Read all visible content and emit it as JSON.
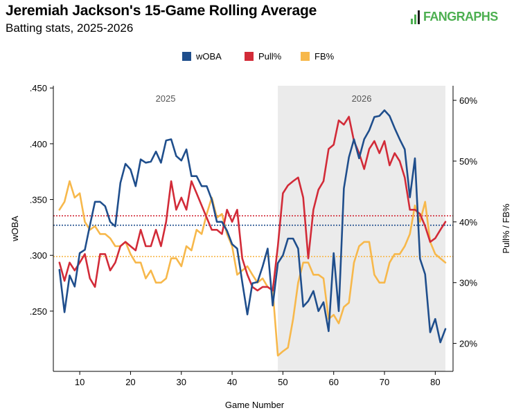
{
  "header": {
    "title": "Jeremiah Jackson's 15-Game Rolling Average",
    "subtitle": "Batting stats, 2025-2026",
    "logo_text": "FANGRAPHS",
    "logo_color": "#4caf50"
  },
  "chart_data": {
    "type": "line",
    "title": "Jeremiah Jackson's 15-Game Rolling Average",
    "subtitle": "Batting stats, 2025-2026",
    "xlabel": "Game Number",
    "ylabel_left": "wOBA",
    "ylabel_right": "Pull% / FB%",
    "xlim": [
      4.8,
      83.5
    ],
    "xticks": [
      10,
      20,
      30,
      40,
      50,
      60,
      70,
      80
    ],
    "ylim_left": [
      0.196,
      0.452
    ],
    "yticks_left": [
      0.25,
      0.3,
      0.35,
      0.4,
      0.45
    ],
    "yticks_left_labels": [
      ".250",
      ".300",
      ".350",
      ".400",
      ".450"
    ],
    "ylim_right": [
      0.154,
      0.624
    ],
    "yticks_right": [
      0.2,
      0.3,
      0.4,
      0.5,
      0.6
    ],
    "yticks_right_labels": [
      "20%",
      "30%",
      "40%",
      "50%",
      "60%"
    ],
    "legend_position": "top",
    "grid": false,
    "season_regions": [
      {
        "label": "2025",
        "start": 4.8,
        "end": 49,
        "fill": "#ffffff"
      },
      {
        "label": "2026",
        "start": 49,
        "end": 82,
        "fill": "#ebebeb"
      }
    ],
    "reference_lines": [
      {
        "series": "wOBA",
        "axis": "left",
        "value": 0.327,
        "color": "#1f4e8c"
      },
      {
        "series": "Pull%",
        "axis": "right",
        "value": 0.41,
        "color": "#d22b38"
      },
      {
        "series": "FB%",
        "axis": "right",
        "value": 0.343,
        "color": "#f7b84b"
      }
    ],
    "series": [
      {
        "name": "wOBA",
        "axis": "left",
        "color": "#1f4e8c",
        "points": [
          [
            6,
            0.287
          ],
          [
            7,
            0.249
          ],
          [
            8,
            0.282
          ],
          [
            9,
            0.272
          ],
          [
            10,
            0.302
          ],
          [
            11,
            0.305
          ],
          [
            12,
            0.327
          ],
          [
            13,
            0.348
          ],
          [
            14,
            0.348
          ],
          [
            15,
            0.344
          ],
          [
            16,
            0.33
          ],
          [
            17,
            0.326
          ],
          [
            18,
            0.365
          ],
          [
            19,
            0.382
          ],
          [
            20,
            0.377
          ],
          [
            21,
            0.362
          ],
          [
            22,
            0.386
          ],
          [
            23,
            0.383
          ],
          [
            24,
            0.384
          ],
          [
            25,
            0.393
          ],
          [
            26,
            0.383
          ],
          [
            27,
            0.403
          ],
          [
            28,
            0.404
          ],
          [
            29,
            0.389
          ],
          [
            30,
            0.385
          ],
          [
            31,
            0.395
          ],
          [
            32,
            0.371
          ],
          [
            33,
            0.371
          ],
          [
            34,
            0.362
          ],
          [
            35,
            0.362
          ],
          [
            36,
            0.35
          ],
          [
            37,
            0.33
          ],
          [
            38,
            0.33
          ],
          [
            39,
            0.322
          ],
          [
            40,
            0.31
          ],
          [
            41,
            0.306
          ],
          [
            42,
            0.276
          ],
          [
            43,
            0.247
          ],
          [
            44,
            0.275
          ],
          [
            45,
            0.276
          ],
          [
            46,
            0.29
          ],
          [
            47,
            0.306
          ],
          [
            48,
            0.255
          ],
          [
            49,
            0.293
          ],
          [
            50,
            0.3
          ],
          [
            51,
            0.315
          ],
          [
            52,
            0.315
          ],
          [
            53,
            0.306
          ],
          [
            54,
            0.254
          ],
          [
            55,
            0.259
          ],
          [
            56,
            0.268
          ],
          [
            57,
            0.25
          ],
          [
            58,
            0.258
          ],
          [
            59,
            0.232
          ],
          [
            60,
            0.302
          ],
          [
            61,
            0.25
          ],
          [
            62,
            0.36
          ],
          [
            63,
            0.388
          ],
          [
            64,
            0.404
          ],
          [
            65,
            0.387
          ],
          [
            66,
            0.404
          ],
          [
            67,
            0.412
          ],
          [
            68,
            0.424
          ],
          [
            69,
            0.425
          ],
          [
            70,
            0.43
          ],
          [
            71,
            0.425
          ],
          [
            72,
            0.414
          ],
          [
            73,
            0.404
          ],
          [
            74,
            0.395
          ],
          [
            75,
            0.352
          ],
          [
            76,
            0.387
          ],
          [
            77,
            0.297
          ],
          [
            78,
            0.283
          ],
          [
            79,
            0.231
          ],
          [
            80,
            0.243
          ],
          [
            81,
            0.222
          ],
          [
            82,
            0.234
          ]
        ]
      },
      {
        "name": "Pull%",
        "axis": "right",
        "color": "#d22b38",
        "points": [
          [
            6,
            0.333
          ],
          [
            7,
            0.303
          ],
          [
            8,
            0.333
          ],
          [
            9,
            0.32
          ],
          [
            10,
            0.333
          ],
          [
            11,
            0.347
          ],
          [
            12,
            0.307
          ],
          [
            13,
            0.293
          ],
          [
            14,
            0.347
          ],
          [
            15,
            0.347
          ],
          [
            16,
            0.32
          ],
          [
            17,
            0.333
          ],
          [
            18,
            0.36
          ],
          [
            19,
            0.367
          ],
          [
            20,
            0.36
          ],
          [
            21,
            0.353
          ],
          [
            22,
            0.387
          ],
          [
            23,
            0.36
          ],
          [
            24,
            0.36
          ],
          [
            25,
            0.387
          ],
          [
            26,
            0.36
          ],
          [
            27,
            0.4
          ],
          [
            28,
            0.467
          ],
          [
            29,
            0.42
          ],
          [
            30,
            0.44
          ],
          [
            31,
            0.42
          ],
          [
            32,
            0.467
          ],
          [
            33,
            0.447
          ],
          [
            34,
            0.427
          ],
          [
            35,
            0.407
          ],
          [
            36,
            0.387
          ],
          [
            37,
            0.387
          ],
          [
            38,
            0.38
          ],
          [
            39,
            0.42
          ],
          [
            40,
            0.4
          ],
          [
            41,
            0.42
          ],
          [
            42,
            0.34
          ],
          [
            43,
            0.313
          ],
          [
            44,
            0.293
          ],
          [
            45,
            0.287
          ],
          [
            46,
            0.293
          ],
          [
            47,
            0.293
          ],
          [
            48,
            0.287
          ],
          [
            49,
            0.36
          ],
          [
            50,
            0.447
          ],
          [
            51,
            0.46
          ],
          [
            52,
            0.467
          ],
          [
            53,
            0.473
          ],
          [
            54,
            0.44
          ],
          [
            55,
            0.34
          ],
          [
            56,
            0.42
          ],
          [
            57,
            0.453
          ],
          [
            58,
            0.467
          ],
          [
            59,
            0.52
          ],
          [
            60,
            0.527
          ],
          [
            61,
            0.567
          ],
          [
            62,
            0.56
          ],
          [
            63,
            0.573
          ],
          [
            64,
            0.533
          ],
          [
            65,
            0.513
          ],
          [
            66,
            0.487
          ],
          [
            67,
            0.52
          ],
          [
            68,
            0.533
          ],
          [
            69,
            0.513
          ],
          [
            70,
            0.533
          ],
          [
            71,
            0.493
          ],
          [
            72,
            0.513
          ],
          [
            73,
            0.5
          ],
          [
            74,
            0.473
          ],
          [
            75,
            0.42
          ],
          [
            76,
            0.42
          ],
          [
            77,
            0.413
          ],
          [
            78,
            0.393
          ],
          [
            79,
            0.367
          ],
          [
            80,
            0.373
          ],
          [
            81,
            0.387
          ],
          [
            82,
            0.4
          ]
        ]
      },
      {
        "name": "FB%",
        "axis": "right",
        "color": "#f7b84b",
        "points": [
          [
            6,
            0.42
          ],
          [
            7,
            0.433
          ],
          [
            8,
            0.467
          ],
          [
            9,
            0.44
          ],
          [
            10,
            0.447
          ],
          [
            11,
            0.4
          ],
          [
            12,
            0.387
          ],
          [
            13,
            0.393
          ],
          [
            14,
            0.38
          ],
          [
            15,
            0.38
          ],
          [
            16,
            0.373
          ],
          [
            17,
            0.36
          ],
          [
            18,
            0.36
          ],
          [
            19,
            0.367
          ],
          [
            20,
            0.347
          ],
          [
            21,
            0.333
          ],
          [
            22,
            0.333
          ],
          [
            23,
            0.307
          ],
          [
            24,
            0.32
          ],
          [
            25,
            0.3
          ],
          [
            26,
            0.3
          ],
          [
            27,
            0.307
          ],
          [
            28,
            0.34
          ],
          [
            29,
            0.34
          ],
          [
            30,
            0.327
          ],
          [
            31,
            0.36
          ],
          [
            32,
            0.353
          ],
          [
            33,
            0.387
          ],
          [
            34,
            0.38
          ],
          [
            35,
            0.413
          ],
          [
            36,
            0.44
          ],
          [
            37,
            0.407
          ],
          [
            38,
            0.413
          ],
          [
            39,
            0.38
          ],
          [
            40,
            0.36
          ],
          [
            41,
            0.313
          ],
          [
            42,
            0.32
          ],
          [
            43,
            0.327
          ],
          [
            44,
            0.313
          ],
          [
            45,
            0.3
          ],
          [
            46,
            0.307
          ],
          [
            47,
            0.293
          ],
          [
            48,
            0.287
          ],
          [
            49,
            0.18
          ],
          [
            50,
            0.187
          ],
          [
            51,
            0.193
          ],
          [
            52,
            0.24
          ],
          [
            53,
            0.3
          ],
          [
            54,
            0.333
          ],
          [
            55,
            0.333
          ],
          [
            56,
            0.313
          ],
          [
            57,
            0.313
          ],
          [
            58,
            0.307
          ],
          [
            59,
            0.24
          ],
          [
            60,
            0.247
          ],
          [
            61,
            0.233
          ],
          [
            62,
            0.26
          ],
          [
            63,
            0.267
          ],
          [
            64,
            0.333
          ],
          [
            65,
            0.36
          ],
          [
            66,
            0.367
          ],
          [
            67,
            0.367
          ],
          [
            68,
            0.313
          ],
          [
            69,
            0.3
          ],
          [
            70,
            0.3
          ],
          [
            71,
            0.333
          ],
          [
            72,
            0.347
          ],
          [
            73,
            0.347
          ],
          [
            74,
            0.36
          ],
          [
            75,
            0.38
          ],
          [
            76,
            0.427
          ],
          [
            77,
            0.4
          ],
          [
            78,
            0.433
          ],
          [
            79,
            0.367
          ],
          [
            80,
            0.347
          ],
          [
            81,
            0.34
          ],
          [
            82,
            0.333
          ]
        ]
      }
    ]
  }
}
